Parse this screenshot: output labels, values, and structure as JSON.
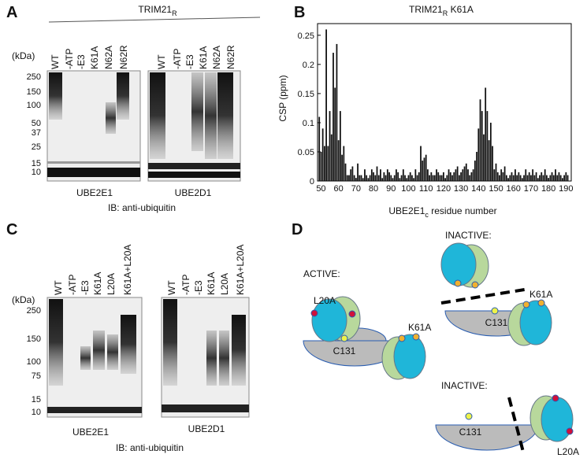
{
  "panel_a": {
    "letter": "A",
    "header": {
      "main": "TRIM21",
      "sub": "R"
    },
    "kda_label": "(kDa)",
    "markers": [
      "250",
      "150",
      "100",
      "50",
      "37",
      "25",
      "15",
      "10"
    ],
    "lanes": [
      "WT",
      "-ATP",
      "-E3",
      "K61A",
      "N62A",
      "N62R"
    ],
    "blots": [
      "UBE2E1",
      "UBE2D1"
    ],
    "footer": "IB: anti-ubiquitin"
  },
  "panel_b": {
    "letter": "B"
  },
  "chart_data": {
    "type": "bar",
    "title": {
      "main": "TRIM21",
      "sub": "R",
      "rest": " K61A"
    },
    "ylabel": "CSP (ppm)",
    "xlabel": {
      "main": "UBE2E1",
      "sub": "c",
      "rest": " residue number"
    },
    "color": "#111111",
    "x": [
      49,
      50,
      51,
      52,
      53,
      54,
      55,
      56,
      57,
      58,
      59,
      60,
      61,
      62,
      63,
      64,
      65,
      66,
      67,
      68,
      69,
      70,
      71,
      72,
      73,
      74,
      75,
      76,
      77,
      78,
      79,
      80,
      81,
      82,
      83,
      84,
      85,
      86,
      87,
      88,
      89,
      90,
      91,
      92,
      93,
      94,
      95,
      96,
      97,
      98,
      99,
      100,
      101,
      102,
      103,
      104,
      105,
      106,
      107,
      108,
      109,
      110,
      111,
      112,
      113,
      114,
      115,
      116,
      117,
      118,
      119,
      120,
      121,
      122,
      123,
      124,
      125,
      126,
      127,
      128,
      129,
      130,
      131,
      132,
      133,
      134,
      135,
      136,
      137,
      138,
      139,
      140,
      141,
      142,
      143,
      144,
      145,
      146,
      147,
      148,
      149,
      150,
      151,
      152,
      153,
      154,
      155,
      156,
      157,
      158,
      159,
      160,
      161,
      162,
      163,
      164,
      165,
      166,
      167,
      168,
      169,
      170,
      171,
      172,
      173,
      174,
      175,
      176,
      177,
      178,
      179,
      180,
      181,
      182,
      183,
      184,
      185,
      186,
      187,
      188,
      189,
      190,
      191
    ],
    "values": [
      0.11,
      0.05,
      0.09,
      0.06,
      0.26,
      0.06,
      0.12,
      0.08,
      0.22,
      0.16,
      0.235,
      0.07,
      0.12,
      0.045,
      0.06,
      0.03,
      0.01,
      0.01,
      0.02,
      0.025,
      0.01,
      0.005,
      0.03,
      0.01,
      0.01,
      0.005,
      0.02,
      0.01,
      0.005,
      0.01,
      0.02,
      0.015,
      0.01,
      0.025,
      0.01,
      0.02,
      0.005,
      0.015,
      0.01,
      0.02,
      0.015,
      0.01,
      0.005,
      0.01,
      0.02,
      0.015,
      0.005,
      0.01,
      0.02,
      0.01,
      0.005,
      0.01,
      0.015,
      0.01,
      0.005,
      0.02,
      0.01,
      0.015,
      0.06,
      0.035,
      0.04,
      0.045,
      0.02,
      0.01,
      0.015,
      0.01,
      0.01,
      0.02,
      0.015,
      0.01,
      0.01,
      0.015,
      0.005,
      0.01,
      0.02,
      0.015,
      0.01,
      0.015,
      0.02,
      0.025,
      0.01,
      0.015,
      0.02,
      0.025,
      0.03,
      0.02,
      0.01,
      0.015,
      0.02,
      0.035,
      0.05,
      0.09,
      0.14,
      0.12,
      0.08,
      0.16,
      0.12,
      0.07,
      0.1,
      0.06,
      0.02,
      0.03,
      0.015,
      0.01,
      0.02,
      0.015,
      0.025,
      0.01,
      0.005,
      0.01,
      0.015,
      0.01,
      0.02,
      0.01,
      0.015,
      0.01,
      0.005,
      0.01,
      0.02,
      0.01,
      0.015,
      0.01,
      0.02,
      0.01,
      0.015,
      0.005,
      0.01,
      0.015,
      0.01,
      0.02,
      0.01,
      0.005,
      0.01,
      0.015,
      0.01,
      0.02,
      0.01,
      0.015,
      0.01,
      0.005,
      0.01,
      0.015,
      0.01
    ],
    "xlim": [
      48,
      193
    ],
    "xticks": [
      50,
      60,
      70,
      80,
      90,
      100,
      110,
      120,
      130,
      140,
      150,
      160,
      170,
      180,
      190
    ],
    "ylim": [
      0,
      0.27
    ],
    "yticks": [
      0,
      0.05,
      0.1,
      0.15,
      0.2,
      0.25
    ]
  },
  "panel_c": {
    "letter": "C",
    "kda_label": "(kDa)",
    "markers": [
      "250",
      "150",
      "100",
      "75",
      "15",
      "10"
    ],
    "lanes": [
      "WT",
      "-ATP",
      "-E3",
      "K61A",
      "L20A",
      "K61A+L20A"
    ],
    "blots": [
      "UBE2E1",
      "UBE2D1"
    ],
    "footer": "IB: anti-ubiquitin"
  },
  "panel_d": {
    "letter": "D",
    "active": {
      "label": "ACTIVE:",
      "l20a": "L20A",
      "k61a": "K61A",
      "c131": "C131"
    },
    "inactive_1": {
      "label": "INACTIVE:",
      "k61a": "K61A",
      "c131": "C131"
    },
    "inactive_2": {
      "label": "INACTIVE:",
      "c131": "C131",
      "l20a": "L20A"
    }
  }
}
